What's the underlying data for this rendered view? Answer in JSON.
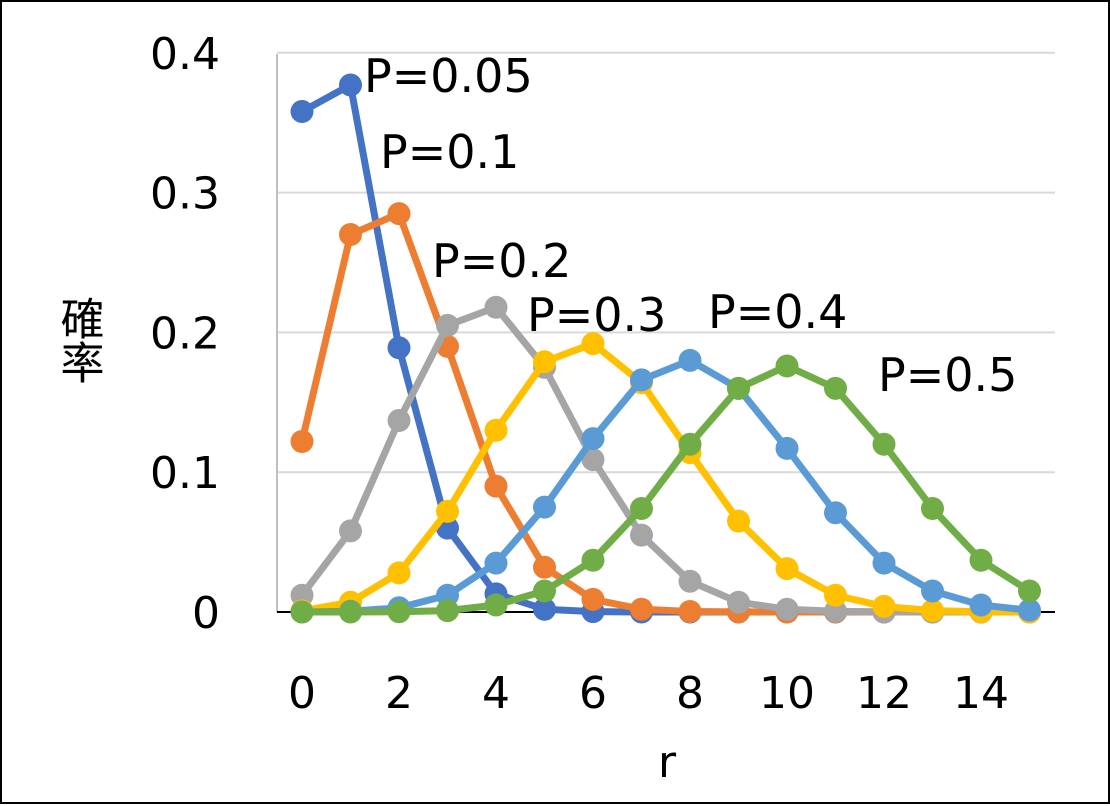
{
  "chart_data": {
    "type": "line",
    "xlabel": "r",
    "ylabel": "確率",
    "xlim": [
      0,
      15
    ],
    "ylim": [
      0,
      0.4
    ],
    "x": [
      0,
      1,
      2,
      3,
      4,
      5,
      6,
      7,
      8,
      9,
      10,
      11,
      12,
      13,
      14,
      15
    ],
    "x_ticks": [
      "0",
      "2",
      "4",
      "6",
      "8",
      "10",
      "12",
      "14"
    ],
    "y_ticks": [
      "0",
      "0.1",
      "0.2",
      "0.3",
      "0.4"
    ],
    "grid": true,
    "legend": "none",
    "series": [
      {
        "name": "P=0.05",
        "color": "#4472C4",
        "values": [
          0.358,
          0.377,
          0.189,
          0.06,
          0.013,
          0.002,
          0.0003,
          0,
          0,
          0,
          0,
          0,
          0,
          0,
          0,
          0
        ]
      },
      {
        "name": "P=0.1",
        "color": "#ED7D31",
        "values": [
          0.122,
          0.27,
          0.285,
          0.19,
          0.09,
          0.032,
          0.009,
          0.002,
          0.0004,
          0.0001,
          0,
          0,
          0,
          0,
          0,
          0
        ]
      },
      {
        "name": "P=0.2",
        "color": "#A5A5A5",
        "values": [
          0.012,
          0.058,
          0.137,
          0.205,
          0.218,
          0.175,
          0.109,
          0.055,
          0.022,
          0.007,
          0.002,
          0.0005,
          0.0001,
          0,
          0,
          0
        ]
      },
      {
        "name": "P=0.3",
        "color": "#FFC000",
        "values": [
          0.0008,
          0.007,
          0.028,
          0.072,
          0.13,
          0.179,
          0.192,
          0.164,
          0.114,
          0.065,
          0.031,
          0.012,
          0.004,
          0.001,
          0.0002,
          0
        ]
      },
      {
        "name": "P=0.4",
        "color": "#5B9BD5",
        "values": [
          0,
          0.0005,
          0.003,
          0.012,
          0.035,
          0.075,
          0.124,
          0.166,
          0.18,
          0.16,
          0.117,
          0.071,
          0.035,
          0.015,
          0.005,
          0.0013
        ]
      },
      {
        "name": "P=0.5",
        "color": "#70AD47",
        "values": [
          0,
          0,
          0.0002,
          0.001,
          0.005,
          0.015,
          0.037,
          0.074,
          0.12,
          0.16,
          0.176,
          0.16,
          0.12,
          0.074,
          0.037,
          0.015
        ]
      }
    ]
  }
}
